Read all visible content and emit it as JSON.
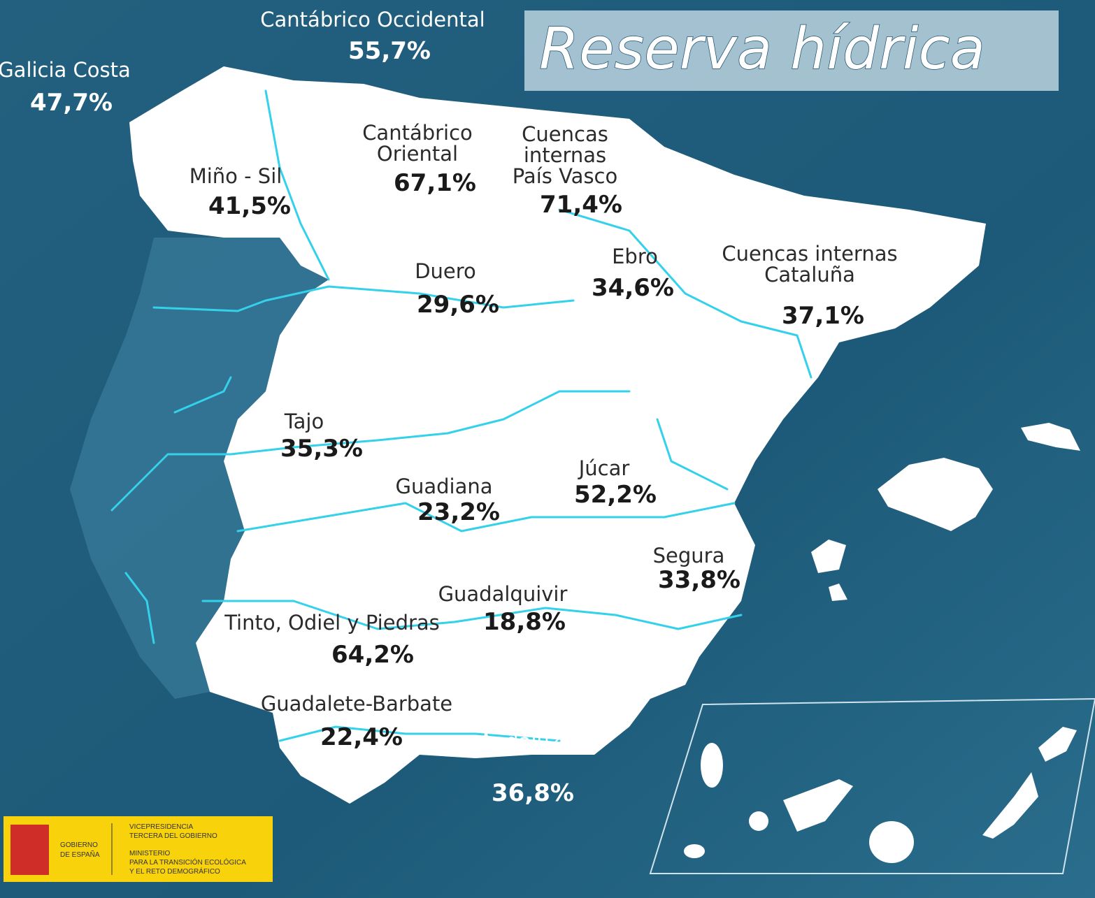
{
  "header": {
    "title": "Reserva hídrica"
  },
  "basins": [
    {
      "name": [
        "Galicia Costa"
      ],
      "value": "47,7%"
    },
    {
      "name": [
        "Cantábrico Occidental"
      ],
      "value": "55,7%"
    },
    {
      "name": [
        "Miño - Sil"
      ],
      "value": "41,5%"
    },
    {
      "name": [
        "Cantábrico",
        "Oriental"
      ],
      "value": "67,1%"
    },
    {
      "name": [
        "Cuencas",
        "internas",
        "País Vasco"
      ],
      "value": "71,4%"
    },
    {
      "name": [
        "Ebro"
      ],
      "value": "34,6%"
    },
    {
      "name": [
        "Cuencas internas",
        "Cataluña"
      ],
      "value": "37,1%"
    },
    {
      "name": [
        "Duero"
      ],
      "value": "29,6%"
    },
    {
      "name": [
        "Tajo"
      ],
      "value": "35,3%"
    },
    {
      "name": [
        "Júcar"
      ],
      "value": "52,2%"
    },
    {
      "name": [
        "Guadiana"
      ],
      "value": "23,2%"
    },
    {
      "name": [
        "Segura"
      ],
      "value": "33,8%"
    },
    {
      "name": [
        "Guadalquivir"
      ],
      "value": "18,8%"
    },
    {
      "name": [
        "Tinto, Odiel y Piedras"
      ],
      "value": "64,2%"
    },
    {
      "name": [
        "Guadalete-Barbate"
      ],
      "value": "22,4%"
    },
    {
      "name": [
        "Cuenca",
        "Mediterránea",
        "Andaluza"
      ],
      "value": "36,8%"
    }
  ],
  "logo": {
    "government": [
      "GOBIERNO",
      "DE ESPAÑA"
    ],
    "vicepresidency": [
      "VICEPRESIDENCIA",
      "TERCERA DEL GOBIERNO"
    ],
    "ministry": [
      "MINISTERIO",
      "PARA LA TRANSICIÓN ECOLÓGICA",
      "Y EL RETO DEMOGRÁFICO"
    ]
  }
}
